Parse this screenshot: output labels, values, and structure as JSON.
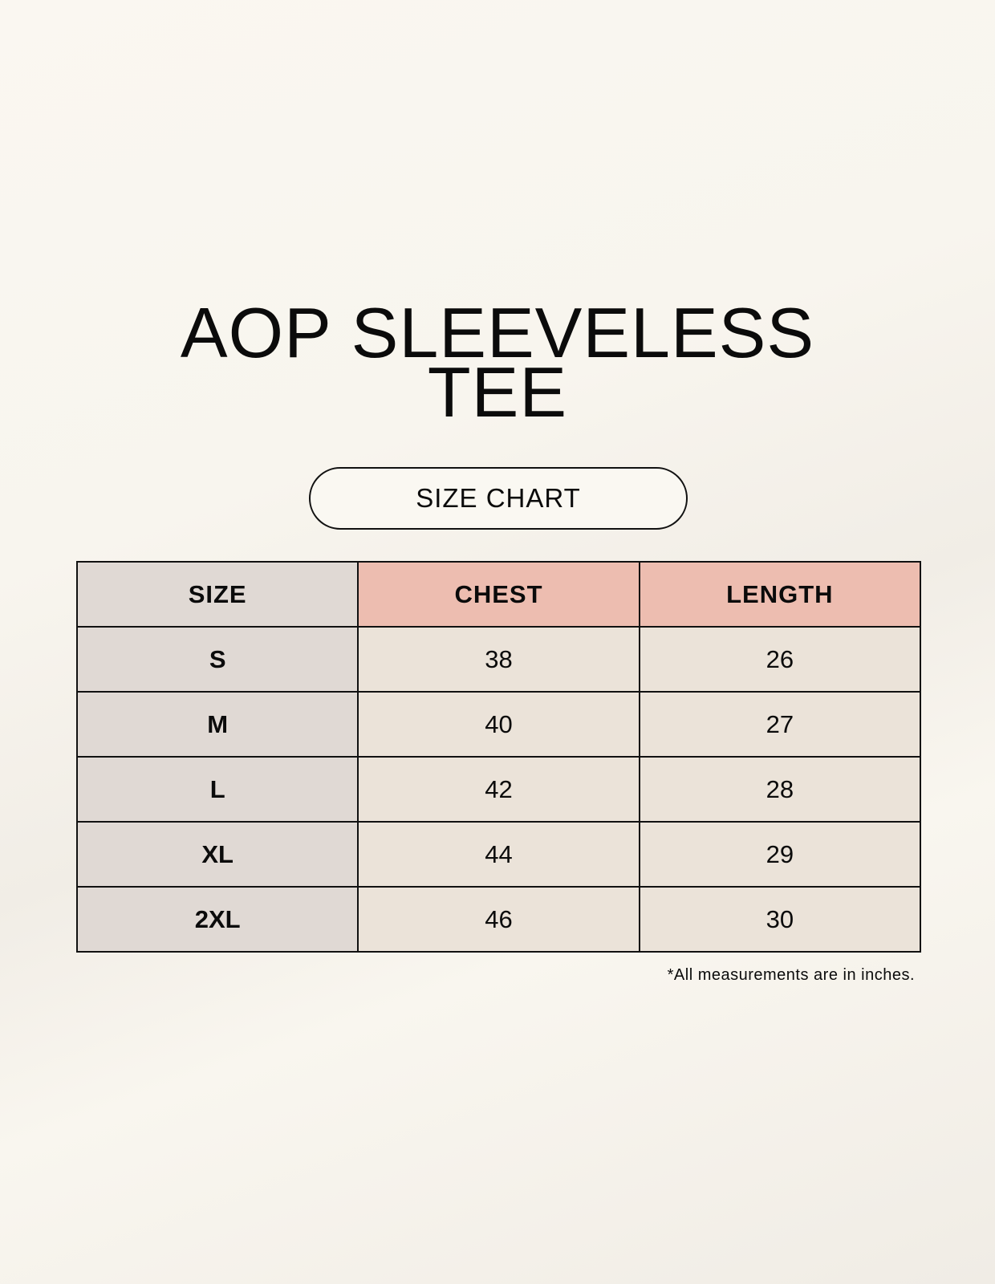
{
  "title_line1": "AOP SLEEVELESS",
  "title_line2": "TEE",
  "badge": "SIZE CHART",
  "table": {
    "headers": [
      "SIZE",
      "CHEST",
      "LENGTH"
    ],
    "rows": [
      [
        "S",
        "38",
        "26"
      ],
      [
        "M",
        "40",
        "27"
      ],
      [
        "L",
        "42",
        "28"
      ],
      [
        "XL",
        "44",
        "29"
      ],
      [
        "2XL",
        "46",
        "30"
      ]
    ]
  },
  "footnote": "*All measurements are in inches.",
  "colors": {
    "size_column": "#e0d9d4",
    "header_accent": "#edbdb0",
    "value_cells": "#ebe3d9"
  }
}
